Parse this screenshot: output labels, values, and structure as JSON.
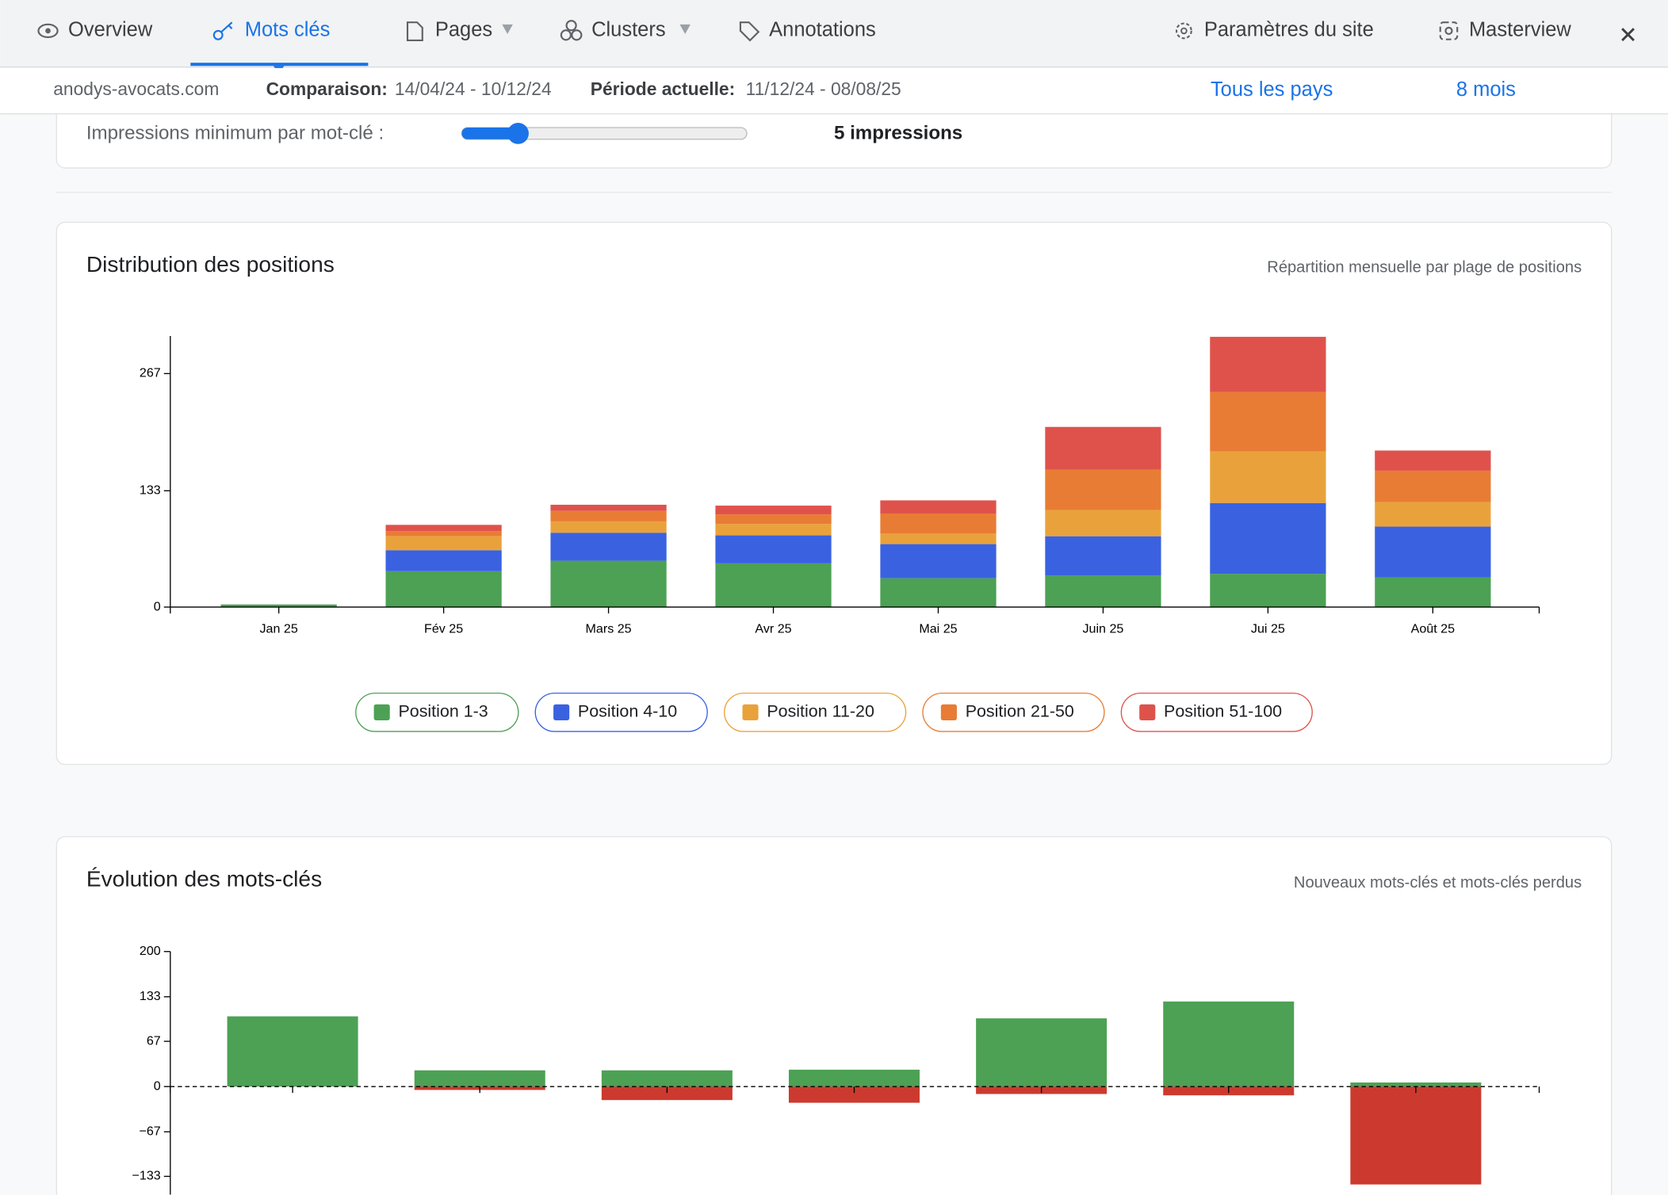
{
  "nav": {
    "tabs": [
      "Overview",
      "Mots clés",
      "Pages",
      "Clusters",
      "Annotations"
    ],
    "right": [
      "Paramètres du site",
      "Masterview"
    ]
  },
  "toolbar": {
    "site": "anodys-avocats.com",
    "comparison_label": "Comparaison:",
    "comparison": "14/04/24 - 10/12/24",
    "period_label": "Période actuelle:",
    "period": "11/12/24 - 08/08/25",
    "country": "Tous les pays",
    "range": "8 mois"
  },
  "filter": {
    "label": "Impressions minimum par mot-clé :",
    "value": "5 impressions"
  },
  "chart_data": [
    {
      "type": "stacked-bar",
      "title": "Distribution des positions",
      "subtitle": "Répartition mensuelle par plage de positions",
      "categories": [
        "Jan 25",
        "Fév 25",
        "Mars 25",
        "Avr 25",
        "Mai 25",
        "Juin 25",
        "Jui 25",
        "Août 25"
      ],
      "series": [
        {
          "name": "Position 1-3",
          "color": "#4ca154",
          "values": [
            3,
            41,
            53,
            50,
            33,
            36,
            38,
            34
          ]
        },
        {
          "name": "Position 4-10",
          "color": "#3a62e0",
          "values": [
            0,
            24,
            32,
            32,
            39,
            45,
            81,
            58
          ]
        },
        {
          "name": "Position 11-20",
          "color": "#e9a23b",
          "values": [
            0,
            16,
            13,
            13,
            12,
            30,
            59,
            28
          ]
        },
        {
          "name": "Position 21-50",
          "color": "#e87c34",
          "values": [
            0,
            6,
            12,
            11,
            23,
            46,
            68,
            36
          ]
        },
        {
          "name": "Position 51-100",
          "color": "#df524c",
          "values": [
            0,
            7,
            7,
            10,
            15,
            49,
            63,
            23
          ]
        }
      ],
      "ylim": [
        0,
        310
      ],
      "yticks": [
        0,
        133,
        267
      ]
    },
    {
      "type": "stacked-bar",
      "title": "Évolution des mots-clés",
      "subtitle": "Nouveaux mots-clés et mots-clés perdus",
      "categories": [
        null,
        null,
        null,
        null,
        null,
        null,
        null
      ],
      "series": [
        {
          "color": "#4ca154",
          "values": [
            104,
            24,
            24,
            25,
            101,
            126,
            6
          ]
        },
        {
          "color": "#cc3a2f",
          "values": [
            0,
            -5,
            -20,
            -24,
            -11,
            -13,
            -145
          ]
        }
      ],
      "ylim": [
        -160,
        200
      ],
      "yticks": [
        200,
        133,
        67,
        0,
        {
          "value": -67,
          "label": "−67"
        },
        {
          "value": -133,
          "label": "−133"
        }
      ]
    }
  ]
}
